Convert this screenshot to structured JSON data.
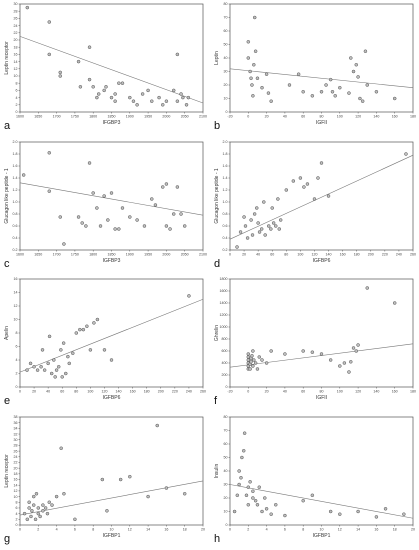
{
  "chart_data": [
    {
      "panel": "a",
      "type": "scatter",
      "xlabel": "IFGBP3",
      "ylabel": "Leptin receptor",
      "xlim": [
        1600,
        2100
      ],
      "ylim": [
        0,
        30
      ],
      "xticks": [
        "1600",
        "1650",
        "1700",
        "1750",
        "1800",
        "1850",
        "1900",
        "1950",
        "2000",
        "2050",
        "2100"
      ],
      "yticks": [
        "0",
        "2",
        "4",
        "6",
        "8",
        "10",
        "12",
        "14",
        "16",
        "18",
        "20",
        "22",
        "24",
        "26",
        "28",
        "30"
      ],
      "fit": [
        [
          1600,
          21
        ],
        [
          2100,
          2.5
        ]
      ],
      "points": [
        [
          1620,
          29
        ],
        [
          1680,
          25
        ],
        [
          1680,
          16
        ],
        [
          1710,
          11
        ],
        [
          1710,
          10
        ],
        [
          1760,
          14
        ],
        [
          1765,
          7
        ],
        [
          1790,
          18
        ],
        [
          1790,
          9
        ],
        [
          1800,
          7
        ],
        [
          1810,
          4
        ],
        [
          1815,
          5
        ],
        [
          1830,
          6
        ],
        [
          1835,
          7
        ],
        [
          1850,
          4
        ],
        [
          1860,
          5
        ],
        [
          1860,
          3
        ],
        [
          1870,
          8
        ],
        [
          1880,
          8
        ],
        [
          1900,
          4
        ],
        [
          1910,
          3
        ],
        [
          1920,
          2
        ],
        [
          1935,
          5
        ],
        [
          1950,
          6
        ],
        [
          1960,
          3
        ],
        [
          1980,
          4
        ],
        [
          1990,
          2
        ],
        [
          2000,
          3
        ],
        [
          2020,
          6
        ],
        [
          2030,
          3
        ],
        [
          2030,
          16
        ],
        [
          2040,
          5
        ],
        [
          2045,
          4
        ],
        [
          2055,
          2
        ],
        [
          2060,
          4
        ]
      ]
    },
    {
      "panel": "b",
      "type": "scatter",
      "xlabel": "IGFII",
      "ylabel": "Leptin",
      "xlim": [
        -20,
        180
      ],
      "ylim": [
        0,
        80
      ],
      "xticks": [
        "-20",
        "0",
        "20",
        "40",
        "60",
        "80",
        "100",
        "120",
        "140",
        "160",
        "180"
      ],
      "yticks": [
        "0",
        "10",
        "20",
        "30",
        "40",
        "50",
        "60",
        "70",
        "80"
      ],
      "fit": [
        [
          -20,
          32
        ],
        [
          180,
          18
        ]
      ],
      "points": [
        [
          0,
          52
        ],
        [
          0,
          40
        ],
        [
          2,
          30
        ],
        [
          3,
          25
        ],
        [
          4,
          20
        ],
        [
          5,
          12
        ],
        [
          6,
          35
        ],
        [
          7,
          70
        ],
        [
          8,
          45
        ],
        [
          10,
          25
        ],
        [
          15,
          18
        ],
        [
          20,
          28
        ],
        [
          22,
          14
        ],
        [
          25,
          8
        ],
        [
          45,
          20
        ],
        [
          55,
          28
        ],
        [
          60,
          15
        ],
        [
          70,
          12
        ],
        [
          80,
          15
        ],
        [
          85,
          20
        ],
        [
          90,
          24
        ],
        [
          92,
          15
        ],
        [
          95,
          12
        ],
        [
          100,
          18
        ],
        [
          110,
          14
        ],
        [
          112,
          40
        ],
        [
          115,
          30
        ],
        [
          118,
          35
        ],
        [
          120,
          26
        ],
        [
          122,
          10
        ],
        [
          125,
          8
        ],
        [
          128,
          45
        ],
        [
          130,
          20
        ],
        [
          140,
          15
        ],
        [
          160,
          10
        ]
      ]
    },
    {
      "panel": "c",
      "type": "scatter",
      "xlabel": "IGFBP3",
      "ylabel": "Glucagon like peptide - 1",
      "xlim": [
        1600,
        2100
      ],
      "ylim": [
        0.2,
        2.0
      ],
      "xticks": [
        "1600",
        "1650",
        "1700",
        "1750",
        "1800",
        "1850",
        "1900",
        "1950",
        "2000",
        "2050",
        "2100"
      ],
      "yticks": [
        "0.2",
        "0.4",
        "0.6",
        "0.8",
        "1.0",
        "1.2",
        "1.4",
        "1.6",
        "1.8",
        "2.0"
      ],
      "fit": [
        [
          1600,
          1.32
        ],
        [
          2100,
          0.78
        ]
      ],
      "points": [
        [
          1610,
          1.45
        ],
        [
          1680,
          1.82
        ],
        [
          1680,
          1.18
        ],
        [
          1710,
          0.75
        ],
        [
          1720,
          0.3
        ],
        [
          1760,
          0.75
        ],
        [
          1770,
          0.65
        ],
        [
          1780,
          0.6
        ],
        [
          1790,
          1.65
        ],
        [
          1800,
          1.15
        ],
        [
          1810,
          0.9
        ],
        [
          1820,
          0.6
        ],
        [
          1830,
          1.1
        ],
        [
          1840,
          0.7
        ],
        [
          1850,
          1.15
        ],
        [
          1860,
          0.55
        ],
        [
          1870,
          0.55
        ],
        [
          1880,
          0.9
        ],
        [
          1900,
          0.75
        ],
        [
          1920,
          0.7
        ],
        [
          1940,
          0.6
        ],
        [
          1960,
          1.05
        ],
        [
          1970,
          0.95
        ],
        [
          1990,
          1.25
        ],
        [
          2000,
          1.3
        ],
        [
          2000,
          0.6
        ],
        [
          2010,
          0.55
        ],
        [
          2020,
          0.8
        ],
        [
          2030,
          1.25
        ],
        [
          2040,
          0.8
        ],
        [
          2050,
          0.6
        ]
      ]
    },
    {
      "panel": "d",
      "type": "scatter",
      "xlabel": "IGFBP6",
      "ylabel": "Glucagon like peptide - 1",
      "xlim": [
        0,
        260
      ],
      "ylim": [
        0.2,
        2.0
      ],
      "xticks": [
        "0",
        "20",
        "40",
        "60",
        "80",
        "100",
        "120",
        "140",
        "160",
        "180",
        "200",
        "220",
        "240",
        "260"
      ],
      "yticks": [
        "0.2",
        "0.4",
        "0.6",
        "0.8",
        "1.0",
        "1.2",
        "1.4",
        "1.6",
        "1.8",
        "2.0"
      ],
      "fit": [
        [
          0,
          0.38
        ],
        [
          260,
          1.78
        ]
      ],
      "points": [
        [
          10,
          0.25
        ],
        [
          15,
          0.5
        ],
        [
          20,
          0.75
        ],
        [
          22,
          0.6
        ],
        [
          25,
          0.4
        ],
        [
          30,
          0.7
        ],
        [
          32,
          0.45
        ],
        [
          35,
          0.8
        ],
        [
          38,
          0.9
        ],
        [
          40,
          0.65
        ],
        [
          42,
          0.5
        ],
        [
          45,
          0.55
        ],
        [
          48,
          1.0
        ],
        [
          50,
          0.45
        ],
        [
          55,
          0.6
        ],
        [
          58,
          0.55
        ],
        [
          60,
          0.9
        ],
        [
          62,
          0.65
        ],
        [
          65,
          0.6
        ],
        [
          68,
          1.05
        ],
        [
          70,
          0.55
        ],
        [
          72,
          0.7
        ],
        [
          80,
          1.2
        ],
        [
          90,
          1.35
        ],
        [
          100,
          1.4
        ],
        [
          105,
          1.25
        ],
        [
          110,
          1.3
        ],
        [
          120,
          1.05
        ],
        [
          125,
          1.4
        ],
        [
          130,
          1.65
        ],
        [
          140,
          1.1
        ],
        [
          250,
          1.8
        ]
      ]
    },
    {
      "panel": "e",
      "type": "scatter",
      "xlabel": "IGFBP6",
      "ylabel": "Apelin",
      "xlim": [
        0,
        260
      ],
      "ylim": [
        0,
        16
      ],
      "xticks": [
        "0",
        "20",
        "40",
        "60",
        "80",
        "100",
        "120",
        "140",
        "160",
        "180",
        "200",
        "220",
        "240",
        "260"
      ],
      "yticks": [
        "0",
        "2",
        "4",
        "6",
        "8",
        "10",
        "12",
        "14",
        "16"
      ],
      "fit": [
        [
          0,
          2.2
        ],
        [
          260,
          13.0
        ]
      ],
      "points": [
        [
          10,
          2.5
        ],
        [
          15,
          3.5
        ],
        [
          20,
          3.0
        ],
        [
          25,
          2.5
        ],
        [
          30,
          3.0
        ],
        [
          32,
          5.5
        ],
        [
          35,
          2.5
        ],
        [
          40,
          3.5
        ],
        [
          42,
          7.5
        ],
        [
          45,
          2.0
        ],
        [
          48,
          4.0
        ],
        [
          50,
          1.5
        ],
        [
          52,
          2.5
        ],
        [
          55,
          3.0
        ],
        [
          58,
          5.5
        ],
        [
          60,
          1.5
        ],
        [
          62,
          6.5
        ],
        [
          65,
          2.0
        ],
        [
          68,
          4.5
        ],
        [
          70,
          3.5
        ],
        [
          75,
          5.0
        ],
        [
          80,
          8.0
        ],
        [
          85,
          8.5
        ],
        [
          90,
          8.5
        ],
        [
          95,
          9.0
        ],
        [
          100,
          5.5
        ],
        [
          105,
          9.5
        ],
        [
          110,
          10.0
        ],
        [
          120,
          5.5
        ],
        [
          130,
          4.0
        ],
        [
          240,
          13.5
        ]
      ]
    },
    {
      "panel": "f",
      "type": "scatter",
      "xlabel": "IGFII",
      "ylabel": "Ghrelin",
      "xlim": [
        -20,
        180
      ],
      "ylim": [
        0,
        1800
      ],
      "xticks": [
        "-20",
        "0",
        "20",
        "40",
        "60",
        "80",
        "100",
        "120",
        "140",
        "160",
        "180"
      ],
      "yticks": [
        "0",
        "200",
        "400",
        "600",
        "800",
        "1000",
        "1200",
        "1400",
        "1600",
        "1800"
      ],
      "fit": [
        [
          -20,
          330
        ],
        [
          180,
          720
        ]
      ],
      "points": [
        [
          0,
          300
        ],
        [
          0,
          350
        ],
        [
          0,
          400
        ],
        [
          0,
          450
        ],
        [
          0,
          500
        ],
        [
          0,
          550
        ],
        [
          2,
          300
        ],
        [
          2,
          380
        ],
        [
          3,
          420
        ],
        [
          3,
          480
        ],
        [
          4,
          520
        ],
        [
          5,
          350
        ],
        [
          5,
          600
        ],
        [
          6,
          450
        ],
        [
          8,
          400
        ],
        [
          10,
          300
        ],
        [
          12,
          500
        ],
        [
          15,
          450
        ],
        [
          20,
          400
        ],
        [
          25,
          600
        ],
        [
          40,
          550
        ],
        [
          60,
          600
        ],
        [
          70,
          580
        ],
        [
          80,
          550
        ],
        [
          90,
          450
        ],
        [
          100,
          350
        ],
        [
          105,
          400
        ],
        [
          110,
          250
        ],
        [
          112,
          420
        ],
        [
          115,
          650
        ],
        [
          118,
          600
        ],
        [
          120,
          700
        ],
        [
          130,
          1650
        ],
        [
          160,
          1400
        ]
      ]
    },
    {
      "panel": "g",
      "type": "scatter",
      "xlabel": "IGFBP1",
      "ylabel": "Leptin receptor",
      "xlim": [
        0,
        20
      ],
      "ylim": [
        0,
        38
      ],
      "xticks": [
        "0",
        "2",
        "4",
        "6",
        "8",
        "10",
        "12",
        "14",
        "16",
        "18",
        "20"
      ],
      "yticks": [
        "0",
        "2",
        "4",
        "6",
        "8",
        "10",
        "12",
        "14",
        "16",
        "18",
        "20",
        "22",
        "24",
        "26",
        "28",
        "30",
        "32",
        "34",
        "36",
        "38"
      ],
      "fit": [
        [
          0,
          3.5
        ],
        [
          20,
          15.5
        ]
      ],
      "points": [
        [
          0.5,
          4
        ],
        [
          0.8,
          2
        ],
        [
          1.0,
          6
        ],
        [
          1.0,
          8
        ],
        [
          1.2,
          3
        ],
        [
          1.3,
          5
        ],
        [
          1.5,
          7
        ],
        [
          1.5,
          10
        ],
        [
          1.7,
          2
        ],
        [
          1.8,
          11
        ],
        [
          2.0,
          4
        ],
        [
          2.0,
          6
        ],
        [
          2.2,
          3
        ],
        [
          2.5,
          5
        ],
        [
          2.5,
          7
        ],
        [
          2.8,
          6
        ],
        [
          3.0,
          4
        ],
        [
          3.2,
          8
        ],
        [
          3.5,
          7
        ],
        [
          4.0,
          10
        ],
        [
          4.5,
          27
        ],
        [
          4.8,
          11
        ],
        [
          6.0,
          2
        ],
        [
          9.0,
          16
        ],
        [
          9.5,
          5
        ],
        [
          11.0,
          16
        ],
        [
          12.0,
          17
        ],
        [
          14.0,
          10
        ],
        [
          15.0,
          35
        ],
        [
          16.0,
          13
        ],
        [
          18.0,
          11
        ]
      ]
    },
    {
      "panel": "h",
      "type": "scatter",
      "xlabel": "IGFBP1",
      "ylabel": "Insulin",
      "xlim": [
        0,
        20
      ],
      "ylim": [
        0,
        80
      ],
      "xticks": [
        "0",
        "2",
        "4",
        "6",
        "8",
        "10",
        "12",
        "14",
        "16",
        "18",
        "20"
      ],
      "yticks": [
        "0",
        "10",
        "20",
        "30",
        "40",
        "50",
        "60",
        "70",
        "80"
      ],
      "fit": [
        [
          0,
          30
        ],
        [
          20,
          5
        ]
      ],
      "points": [
        [
          0.5,
          10
        ],
        [
          0.8,
          22
        ],
        [
          1.0,
          30
        ],
        [
          1.0,
          40
        ],
        [
          1.2,
          35
        ],
        [
          1.3,
          50
        ],
        [
          1.5,
          55
        ],
        [
          1.6,
          68
        ],
        [
          1.8,
          22
        ],
        [
          2.0,
          15
        ],
        [
          2.0,
          28
        ],
        [
          2.2,
          32
        ],
        [
          2.5,
          25
        ],
        [
          2.5,
          20
        ],
        [
          2.8,
          18
        ],
        [
          3.0,
          15
        ],
        [
          3.2,
          28
        ],
        [
          3.5,
          10
        ],
        [
          3.8,
          20
        ],
        [
          4.0,
          12
        ],
        [
          4.5,
          8
        ],
        [
          5.0,
          15
        ],
        [
          6.0,
          7
        ],
        [
          8.0,
          18
        ],
        [
          9.0,
          22
        ],
        [
          11.0,
          10
        ],
        [
          12.0,
          8
        ],
        [
          14.0,
          10
        ],
        [
          16.0,
          6
        ],
        [
          17.0,
          12
        ],
        [
          19.0,
          8
        ]
      ]
    }
  ]
}
